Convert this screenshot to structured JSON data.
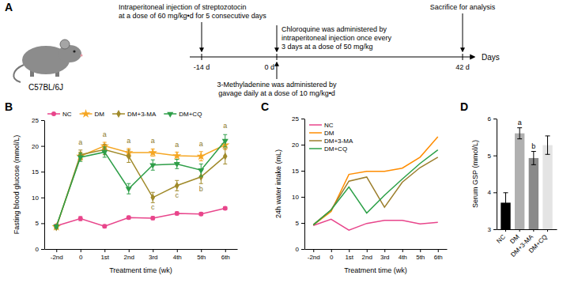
{
  "diagram": {
    "panel": "A",
    "strain": "C57BL/6J",
    "axis_unit": "Days",
    "ticks": [
      "-14 d",
      "0 d",
      "42 d"
    ],
    "events": {
      "streptozotocin": [
        "Intraperitoneal injection of streptozotocin",
        "at a dose of 60 mg/kg•d for 5 consecutive days"
      ],
      "chloroquine": [
        "Chloroquine was administered by",
        "intraperitoneal injection once every",
        "3 days at a dose of 50 mg/kg"
      ],
      "sacrifice": [
        "Sacrifice for analysis"
      ],
      "methyladenine": [
        "3-Methyladenine was administered by",
        "gavage daily at a dose of 10 mg/kg•d"
      ]
    }
  },
  "chart_data": [
    {
      "panel": "B",
      "type": "line",
      "x_label": "Treatment time (wk)",
      "y_label": "Fasting blood glucose (mmol/L)",
      "categories": [
        "-2nd",
        "0",
        "1st",
        "2nd",
        "3rd",
        "4th",
        "5th",
        "6th"
      ],
      "ylim": [
        0,
        25
      ],
      "yticks": [
        0,
        5,
        10,
        15,
        20,
        25
      ],
      "legend": "top",
      "series": [
        {
          "name": "NC",
          "color": "#e8458b",
          "marker": "circle",
          "values": [
            4.5,
            5.9,
            4.4,
            6.1,
            6.0,
            6.9,
            6.8,
            7.9
          ],
          "errors": [
            0.3,
            0.4,
            0.3,
            0.3,
            0.3,
            0.3,
            0.3,
            0.3
          ]
        },
        {
          "name": "DM",
          "color": "#f5a623",
          "marker": "star",
          "values": [
            4.3,
            18.0,
            20.0,
            18.7,
            18.7,
            18.1,
            18.0,
            20.2
          ],
          "errors": [
            0.3,
            0.8,
            0.7,
            0.8,
            0.7,
            0.7,
            0.9,
            0.9
          ]
        },
        {
          "name": "DM+3-MA",
          "color": "#a08a2a",
          "marker": "diamond",
          "values": [
            4.2,
            18.3,
            19.3,
            18.0,
            10.0,
            12.3,
            14.0,
            18.0
          ],
          "errors": [
            0.3,
            0.9,
            1.0,
            1.2,
            1.0,
            1.0,
            1.3,
            1.5
          ]
        },
        {
          "name": "DM+CQ",
          "color": "#2e9e48",
          "marker": "triangle-down",
          "values": [
            4.4,
            17.8,
            18.8,
            11.7,
            16.3,
            16.5,
            15.3,
            21.0
          ],
          "errors": [
            0.3,
            0.8,
            1.0,
            1.0,
            1.0,
            0.9,
            1.2,
            1.2
          ]
        }
      ],
      "annotations": [
        {
          "x": "0",
          "y": 20.3,
          "text": "a"
        },
        {
          "x": "1st",
          "y": 21.8,
          "text": "a"
        },
        {
          "x": "2nd",
          "y": 20.6,
          "text": "a"
        },
        {
          "x": "3rd",
          "y": 20.5,
          "text": "a"
        },
        {
          "x": "4th",
          "y": 19.8,
          "text": "a"
        },
        {
          "x": "5th",
          "y": 20.0,
          "text": "a"
        },
        {
          "x": "6th",
          "y": 23.4,
          "text": "a"
        },
        {
          "x": "3rd",
          "y": 7.6,
          "text": "c"
        },
        {
          "x": "4th",
          "y": 10.0,
          "text": "c"
        },
        {
          "x": "5th",
          "y": 11.2,
          "text": "b"
        }
      ]
    },
    {
      "panel": "C",
      "type": "line",
      "x_label": "Treatment time (wk)",
      "y_label": "24h water intake (mL)",
      "categories": [
        "-2nd",
        "0",
        "1st",
        "2nd",
        "3rd",
        "4th",
        "5th",
        "6th"
      ],
      "ylim": [
        0,
        25
      ],
      "yticks": [
        0,
        5,
        10,
        15,
        20,
        25
      ],
      "legend": "upper left",
      "series": [
        {
          "name": "NC",
          "color": "#e8458b",
          "values": [
            4.5,
            5.7,
            3.6,
            4.9,
            5.5,
            5.5,
            4.8,
            5.1
          ]
        },
        {
          "name": "DM",
          "color": "#ff8c00",
          "values": [
            4.6,
            7.2,
            14.3,
            14.9,
            14.9,
            15.5,
            17.6,
            21.5
          ]
        },
        {
          "name": "DM+3-MA",
          "color": "#9c7e2c",
          "values": [
            4.7,
            7.5,
            13.0,
            13.8,
            8.0,
            12.8,
            15.6,
            17.6
          ]
        },
        {
          "name": "DM+CQ",
          "color": "#2ca048",
          "values": [
            4.6,
            7.5,
            11.9,
            6.9,
            10.3,
            13.4,
            16.4,
            19.0
          ]
        }
      ]
    },
    {
      "panel": "D",
      "type": "bar",
      "y_label": "Serum GSP (mmol/L)",
      "categories": [
        "NC",
        "DM",
        "DM+3-MA",
        "DM+CQ"
      ],
      "values": [
        3.72,
        5.6,
        4.93,
        5.28
      ],
      "errors": [
        0.27,
        0.15,
        0.18,
        0.25
      ],
      "colors": [
        "#000000",
        "#b0b0b0",
        "#8a8a8a",
        "#e4e4e4"
      ],
      "ylim": [
        3,
        6
      ],
      "yticks": [
        3,
        4,
        5,
        6
      ],
      "annotations": [
        {
          "x": "DM",
          "y": 5.82,
          "text": "a"
        },
        {
          "x": "DM+3-MA",
          "y": 5.18,
          "text": "b"
        }
      ]
    }
  ]
}
